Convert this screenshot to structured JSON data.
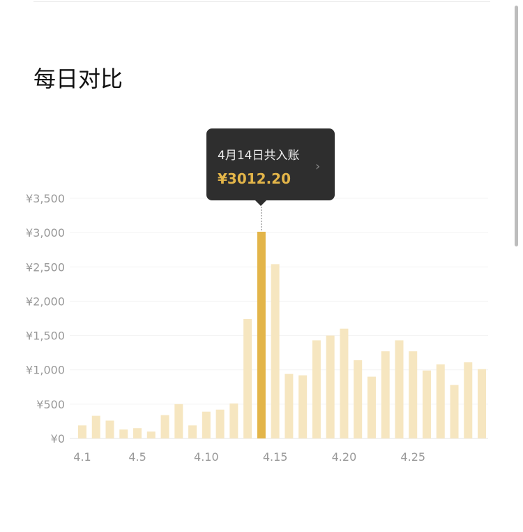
{
  "title": "每日对比",
  "tooltip": {
    "label": "4月14日共入账",
    "value": "¥3012.20",
    "icon": "chevron-right-icon"
  },
  "chart_data": {
    "type": "bar",
    "categories": [
      "4.1",
      "4.2",
      "4.3",
      "4.4",
      "4.5",
      "4.6",
      "4.7",
      "4.8",
      "4.9",
      "4.10",
      "4.11",
      "4.12",
      "4.13",
      "4.14",
      "4.15",
      "4.16",
      "4.17",
      "4.18",
      "4.19",
      "4.20",
      "4.21",
      "4.22",
      "4.23",
      "4.24",
      "4.25",
      "4.26",
      "4.27",
      "4.28",
      "4.29",
      "4.30"
    ],
    "values": [
      190,
      330,
      260,
      130,
      150,
      100,
      340,
      500,
      190,
      390,
      420,
      510,
      1740,
      3012.2,
      2540,
      940,
      920,
      1430,
      1500,
      1600,
      1140,
      900,
      1270,
      1430,
      1270,
      990,
      1080,
      780,
      1110,
      1010
    ],
    "highlight_index": 13,
    "ylim": [
      0,
      3500
    ],
    "yticks": [
      "¥0",
      "¥500",
      "¥1,000",
      "¥1,500",
      "¥2,000",
      "¥2,500",
      "¥3,000",
      "¥3,500"
    ],
    "xticks": [
      "4.1",
      "4.5",
      "4.10",
      "4.15",
      "4.20",
      "4.25"
    ],
    "grid": true,
    "colors": {
      "bar": "#f6e6c0",
      "highlight": "#e3b549"
    }
  }
}
